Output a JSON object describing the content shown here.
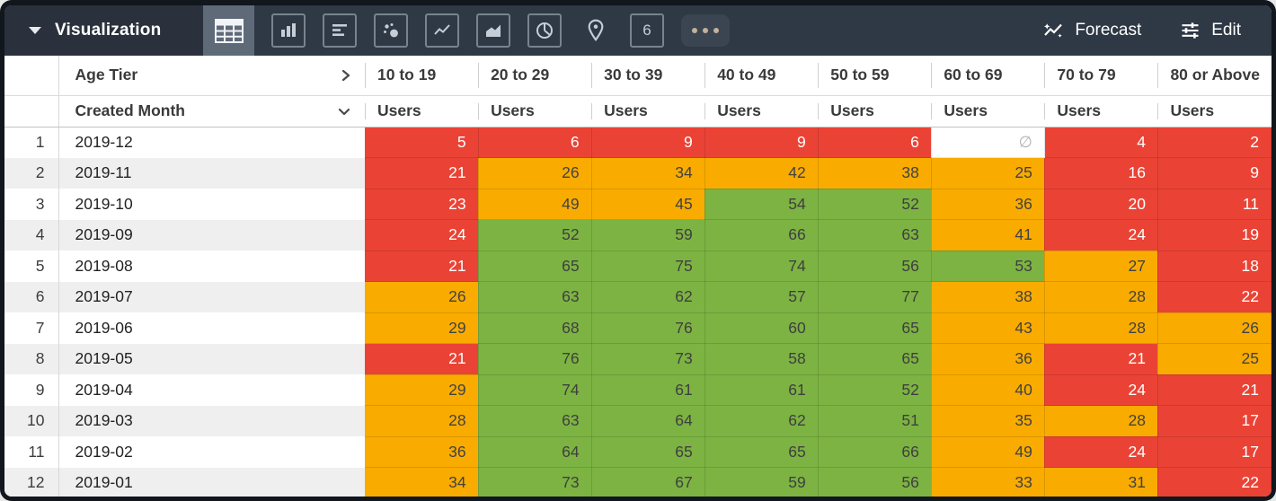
{
  "toolbar": {
    "title": "Visualization",
    "viz_type_icons": [
      "table-icon",
      "bar-chart-icon",
      "row-chart-icon",
      "scatter-icon",
      "line-chart-icon",
      "area-chart-icon",
      "pie-chart-icon",
      "map-pin-icon",
      "single-value-icon",
      "more-icon"
    ],
    "selected_viz_type": "table-icon",
    "single_value_glyph": "6",
    "forecast_label": "Forecast",
    "edit_label": "Edit"
  },
  "header": {
    "pivot_field": "Age Tier",
    "row_field": "Created Month",
    "measure_label": "Users",
    "age_tiers": [
      "10 to 19",
      "20 to 29",
      "30 to 39",
      "40 to 49",
      "50 to 59",
      "60 to 69",
      "70 to 79",
      "80 or Above"
    ]
  },
  "colors": {
    "red": "#EA4335",
    "orange": "#F9AB00",
    "green": "#7CB342",
    "topbar": "#2f3845"
  },
  "table": {
    "null_symbol": "∅",
    "rows": [
      {
        "index": "1",
        "month": "2019-12",
        "values": [
          "5",
          "6",
          "9",
          "9",
          "6",
          null,
          "4",
          "2"
        ],
        "colors": [
          "r",
          "r",
          "r",
          "r",
          "r",
          "n",
          "r",
          "r"
        ]
      },
      {
        "index": "2",
        "month": "2019-11",
        "values": [
          "21",
          "26",
          "34",
          "42",
          "38",
          "25",
          "16",
          "9"
        ],
        "colors": [
          "r",
          "o",
          "o",
          "o",
          "o",
          "o",
          "r",
          "r"
        ]
      },
      {
        "index": "3",
        "month": "2019-10",
        "values": [
          "23",
          "49",
          "45",
          "54",
          "52",
          "36",
          "20",
          "11"
        ],
        "colors": [
          "r",
          "o",
          "o",
          "g",
          "g",
          "o",
          "r",
          "r"
        ]
      },
      {
        "index": "4",
        "month": "2019-09",
        "values": [
          "24",
          "52",
          "59",
          "66",
          "63",
          "41",
          "24",
          "19"
        ],
        "colors": [
          "r",
          "g",
          "g",
          "g",
          "g",
          "o",
          "r",
          "r"
        ]
      },
      {
        "index": "5",
        "month": "2019-08",
        "values": [
          "21",
          "65",
          "75",
          "74",
          "56",
          "53",
          "27",
          "18"
        ],
        "colors": [
          "r",
          "g",
          "g",
          "g",
          "g",
          "g",
          "o",
          "r"
        ]
      },
      {
        "index": "6",
        "month": "2019-07",
        "values": [
          "26",
          "63",
          "62",
          "57",
          "77",
          "38",
          "28",
          "22"
        ],
        "colors": [
          "o",
          "g",
          "g",
          "g",
          "g",
          "o",
          "o",
          "r"
        ]
      },
      {
        "index": "7",
        "month": "2019-06",
        "values": [
          "29",
          "68",
          "76",
          "60",
          "65",
          "43",
          "28",
          "26"
        ],
        "colors": [
          "o",
          "g",
          "g",
          "g",
          "g",
          "o",
          "o",
          "o"
        ]
      },
      {
        "index": "8",
        "month": "2019-05",
        "values": [
          "21",
          "76",
          "73",
          "58",
          "65",
          "36",
          "21",
          "25"
        ],
        "colors": [
          "r",
          "g",
          "g",
          "g",
          "g",
          "o",
          "r",
          "o"
        ]
      },
      {
        "index": "9",
        "month": "2019-04",
        "values": [
          "29",
          "74",
          "61",
          "61",
          "52",
          "40",
          "24",
          "21"
        ],
        "colors": [
          "o",
          "g",
          "g",
          "g",
          "g",
          "o",
          "r",
          "r"
        ]
      },
      {
        "index": "10",
        "month": "2019-03",
        "values": [
          "28",
          "63",
          "64",
          "62",
          "51",
          "35",
          "28",
          "17"
        ],
        "colors": [
          "o",
          "g",
          "g",
          "g",
          "g",
          "o",
          "o",
          "r"
        ]
      },
      {
        "index": "11",
        "month": "2019-02",
        "values": [
          "36",
          "64",
          "65",
          "65",
          "66",
          "49",
          "24",
          "17"
        ],
        "colors": [
          "o",
          "g",
          "g",
          "g",
          "g",
          "o",
          "r",
          "r"
        ]
      },
      {
        "index": "12",
        "month": "2019-01",
        "values": [
          "34",
          "73",
          "67",
          "59",
          "56",
          "33",
          "31",
          "22"
        ],
        "colors": [
          "o",
          "g",
          "g",
          "g",
          "g",
          "o",
          "o",
          "r"
        ]
      }
    ]
  }
}
